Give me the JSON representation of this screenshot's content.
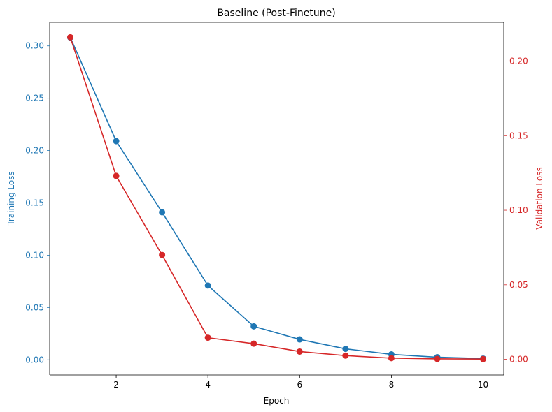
{
  "chart_data": {
    "type": "line",
    "title": "Baseline (Post-Finetune)",
    "xlabel": "Epoch",
    "ylabel_left": "Training Loss",
    "ylabel_right": "Validation Loss",
    "x": [
      1,
      2,
      3,
      4,
      5,
      6,
      7,
      8,
      9,
      10
    ],
    "xlim": [
      0.55,
      10.45
    ],
    "xticks": [
      2,
      4,
      6,
      8,
      10
    ],
    "series": [
      {
        "name": "Training Loss",
        "axis": "left",
        "color": "#1f77b4",
        "values": [
          0.308,
          0.209,
          0.141,
          0.071,
          0.032,
          0.0195,
          0.0105,
          0.0052,
          0.0025,
          0.0012
        ]
      },
      {
        "name": "Validation Loss",
        "axis": "right",
        "color": "#d62728",
        "values": [
          0.216,
          0.123,
          0.07,
          0.0145,
          0.0105,
          0.0052,
          0.0025,
          0.0008,
          0.0003,
          0.0002
        ]
      }
    ],
    "ylim_left": [
      -0.0145,
      0.3225
    ],
    "ylim_right": [
      -0.0105,
      0.226
    ],
    "yticks_left": [
      "0.00",
      "0.05",
      "0.10",
      "0.15",
      "0.20",
      "0.25",
      "0.30"
    ],
    "yticks_right": [
      "0.00",
      "0.05",
      "0.10",
      "0.15",
      "0.20"
    ],
    "grid": false,
    "legend": "none"
  }
}
